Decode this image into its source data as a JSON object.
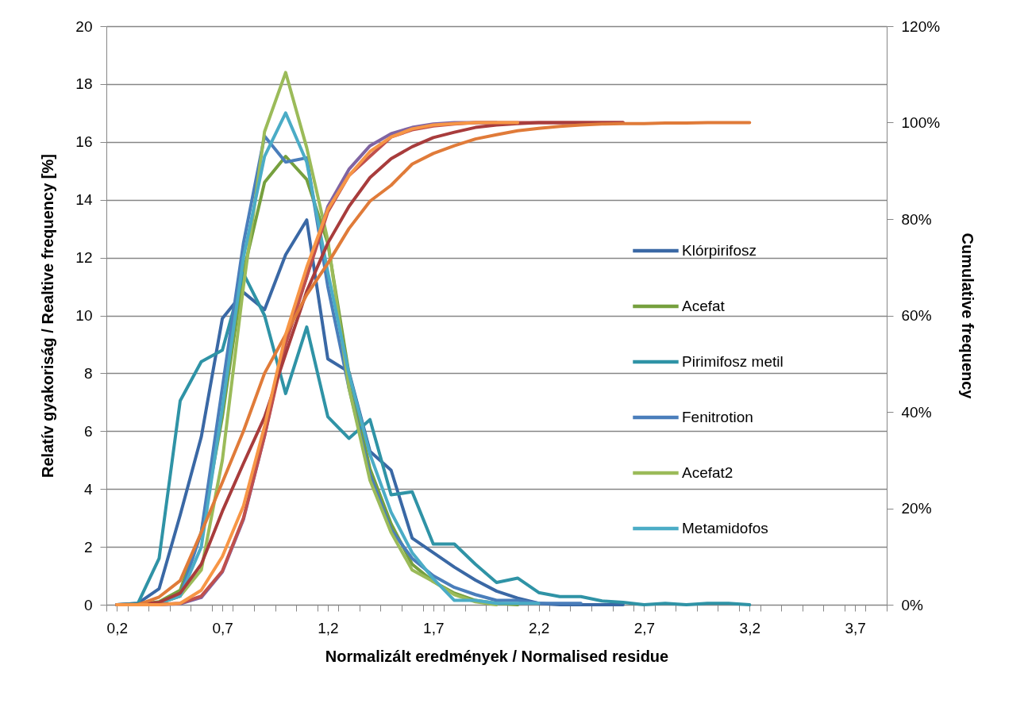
{
  "chart_data": {
    "type": "line",
    "xlabel": "Normalizált eredmények / Normalised residue",
    "ylabel": "Relatív gyakoriság / Realtive frequency [%]",
    "y2label": "Cumulative frequency",
    "x": [
      0.2,
      0.3,
      0.4,
      0.5,
      0.6,
      0.7,
      0.8,
      0.9,
      1.0,
      1.1,
      1.2,
      1.3,
      1.4,
      1.5,
      1.6,
      1.7,
      1.8,
      1.9,
      2.0,
      2.1,
      2.2,
      2.3,
      2.4,
      2.5,
      2.6,
      2.7,
      2.8,
      2.9,
      3.0,
      3.1,
      3.2
    ],
    "xlim": [
      0.15,
      3.85
    ],
    "xticks": [
      {
        "value": 0.15,
        "label": null
      },
      {
        "value": 0.2,
        "label": "0,2"
      },
      {
        "value": 0.25,
        "label": null
      },
      {
        "value": 0.35,
        "label": null
      },
      {
        "value": 0.45,
        "label": null
      },
      {
        "value": 0.55,
        "label": null
      },
      {
        "value": 0.65,
        "label": null
      },
      {
        "value": 0.7,
        "label": "0,7"
      },
      {
        "value": 0.75,
        "label": null
      },
      {
        "value": 0.85,
        "label": null
      },
      {
        "value": 0.95,
        "label": null
      },
      {
        "value": 1.05,
        "label": null
      },
      {
        "value": 1.15,
        "label": null
      },
      {
        "value": 1.2,
        "label": "1,2"
      },
      {
        "value": 1.25,
        "label": null
      },
      {
        "value": 1.35,
        "label": null
      },
      {
        "value": 1.45,
        "label": null
      },
      {
        "value": 1.55,
        "label": null
      },
      {
        "value": 1.65,
        "label": null
      },
      {
        "value": 1.7,
        "label": "1,7"
      },
      {
        "value": 1.75,
        "label": null
      },
      {
        "value": 1.85,
        "label": null
      },
      {
        "value": 1.95,
        "label": null
      },
      {
        "value": 2.05,
        "label": null
      },
      {
        "value": 2.15,
        "label": null
      },
      {
        "value": 2.2,
        "label": "2,2"
      },
      {
        "value": 2.25,
        "label": null
      },
      {
        "value": 2.35,
        "label": null
      },
      {
        "value": 2.45,
        "label": null
      },
      {
        "value": 2.55,
        "label": null
      },
      {
        "value": 2.65,
        "label": null
      },
      {
        "value": 2.7,
        "label": "2,7"
      },
      {
        "value": 2.75,
        "label": null
      },
      {
        "value": 2.85,
        "label": null
      },
      {
        "value": 2.95,
        "label": null
      },
      {
        "value": 3.05,
        "label": null
      },
      {
        "value": 3.15,
        "label": null
      },
      {
        "value": 3.2,
        "label": "3,2"
      },
      {
        "value": 3.25,
        "label": null
      },
      {
        "value": 3.35,
        "label": null
      },
      {
        "value": 3.45,
        "label": null
      },
      {
        "value": 3.55,
        "label": null
      },
      {
        "value": 3.65,
        "label": null
      },
      {
        "value": 3.7,
        "label": "3,7"
      },
      {
        "value": 3.75,
        "label": null
      },
      {
        "value": 3.85,
        "label": null
      }
    ],
    "ylim": [
      0,
      20
    ],
    "yticks": [
      0,
      2,
      4,
      6,
      8,
      10,
      12,
      14,
      16,
      18,
      20
    ],
    "y2lim": [
      0,
      120
    ],
    "y2ticks": [
      {
        "value": 0,
        "label": "0%"
      },
      {
        "value": 20,
        "label": "20%"
      },
      {
        "value": 40,
        "label": "40%"
      },
      {
        "value": 60,
        "label": "60%"
      },
      {
        "value": 80,
        "label": "80%"
      },
      {
        "value": 100,
        "label": "100%"
      },
      {
        "value": 120,
        "label": "120%"
      }
    ],
    "grid": "y",
    "legend": "right",
    "series": [
      {
        "name": "Klórpirifosz",
        "color": "#3a68a5",
        "values": [
          0,
          0.05,
          0.55,
          3.1,
          5.8,
          9.9,
          10.8,
          10.2,
          12.1,
          13.3,
          8.5,
          8.05,
          5.3,
          4.65,
          2.3,
          1.8,
          1.3,
          0.85,
          0.47,
          0.23,
          0.05,
          0,
          0,
          0,
          0,
          null,
          null,
          null,
          null,
          null,
          null
        ]
      },
      {
        "name": "Acefat",
        "color": "#76a03e",
        "values": [
          0,
          0,
          0.1,
          0.5,
          2.5,
          6.5,
          11.5,
          14.6,
          15.5,
          14.7,
          12.5,
          8,
          4.7,
          2.8,
          1.4,
          0.8,
          0.4,
          0.15,
          0.05,
          0,
          null,
          null,
          null,
          null,
          null,
          null,
          null,
          null,
          null,
          null,
          null
        ]
      },
      {
        "name": "Pirimifosz metil",
        "color": "#2f93a6",
        "values": [
          0,
          0.05,
          1.6,
          7.05,
          8.4,
          8.8,
          11.45,
          10.0,
          7.3,
          9.6,
          6.5,
          5.75,
          6.4,
          3.8,
          3.9,
          2.1,
          2.1,
          1.4,
          0.77,
          0.92,
          0.42,
          0.28,
          0.28,
          0.13,
          0.08,
          0,
          0.05,
          0,
          0.05,
          0.05,
          0
        ]
      },
      {
        "name": "Fenitrotion",
        "color": "#4a7ebb",
        "values": [
          0,
          0,
          0.05,
          0.3,
          2.5,
          7.5,
          12.5,
          16.2,
          15.3,
          15.45,
          11,
          7.5,
          4.5,
          2.6,
          1.6,
          1.0,
          0.6,
          0.35,
          0.15,
          0.15,
          0.05,
          0.05,
          0.05,
          null,
          null,
          null,
          null,
          null,
          null,
          null,
          null
        ]
      },
      {
        "name": "Acefat2",
        "color": "#9bbb59",
        "values": [
          0,
          0,
          0.05,
          0.3,
          1.2,
          5,
          11,
          16.35,
          18.4,
          15.8,
          12.6,
          7.5,
          4.3,
          2.5,
          1.2,
          0.8,
          0.35,
          0.1,
          0,
          null,
          null,
          null,
          null,
          null,
          null,
          null,
          null,
          null,
          null,
          null,
          null
        ]
      },
      {
        "name": "Metamidofos",
        "color": "#4bacc6",
        "values": [
          0,
          0,
          0.05,
          0.3,
          2,
          6.8,
          12,
          15.5,
          17.0,
          15.3,
          11.5,
          8,
          5.2,
          3.2,
          1.8,
          0.9,
          0.15,
          0.15,
          0.05,
          0.05,
          0.05,
          null,
          null,
          null,
          null,
          null,
          null,
          null,
          null,
          null,
          null
        ]
      },
      {
        "color": "#8064a2",
        "axis": "y2",
        "values": [
          0,
          0,
          0,
          0.2,
          1.5,
          6.8,
          17.7,
          35,
          55,
          68,
          82.6,
          90.3,
          95.2,
          97.7,
          99,
          99.7,
          100,
          100,
          100,
          null,
          null,
          null,
          null,
          null,
          null,
          null,
          null,
          null,
          null,
          null,
          null
        ]
      },
      {
        "color": "#c0504d",
        "axis": "y2",
        "values": [
          0,
          0,
          0.1,
          0.3,
          1.8,
          7,
          18,
          35,
          54,
          68,
          81.5,
          89,
          93,
          97,
          98.5,
          99.3,
          99.7,
          100,
          100,
          100,
          100,
          100,
          100,
          100,
          100,
          null,
          null,
          null,
          null,
          null,
          null
        ]
      },
      {
        "color": "#a83c3c",
        "axis": "y2",
        "values": [
          0,
          0.1,
          0.5,
          2.4,
          8.4,
          19.4,
          29.3,
          38.9,
          52,
          65,
          75,
          82.6,
          88.6,
          92.5,
          95,
          96.9,
          98,
          99,
          99.5,
          99.8,
          100,
          100,
          100,
          100,
          100,
          null,
          null,
          null,
          null,
          null,
          null
        ]
      },
      {
        "color": "#e07b39",
        "axis": "y2",
        "values": [
          0,
          0,
          1.6,
          5,
          15,
          25.4,
          36,
          48,
          56,
          64.3,
          70.8,
          78,
          83.7,
          87,
          91.4,
          93.6,
          95.2,
          96.6,
          97.5,
          98.3,
          98.8,
          99.2,
          99.5,
          99.7,
          99.8,
          99.8,
          99.9,
          99.9,
          100,
          100,
          100
        ]
      },
      {
        "color": "#f79646",
        "axis": "y2",
        "values": [
          0,
          0,
          0,
          0.3,
          3,
          10,
          20.5,
          37,
          56,
          70,
          82,
          89,
          94,
          97,
          98.7,
          99.5,
          99.8,
          100,
          100,
          100,
          null,
          null,
          null,
          null,
          null,
          null,
          null,
          null,
          null,
          null,
          null
        ]
      }
    ]
  }
}
